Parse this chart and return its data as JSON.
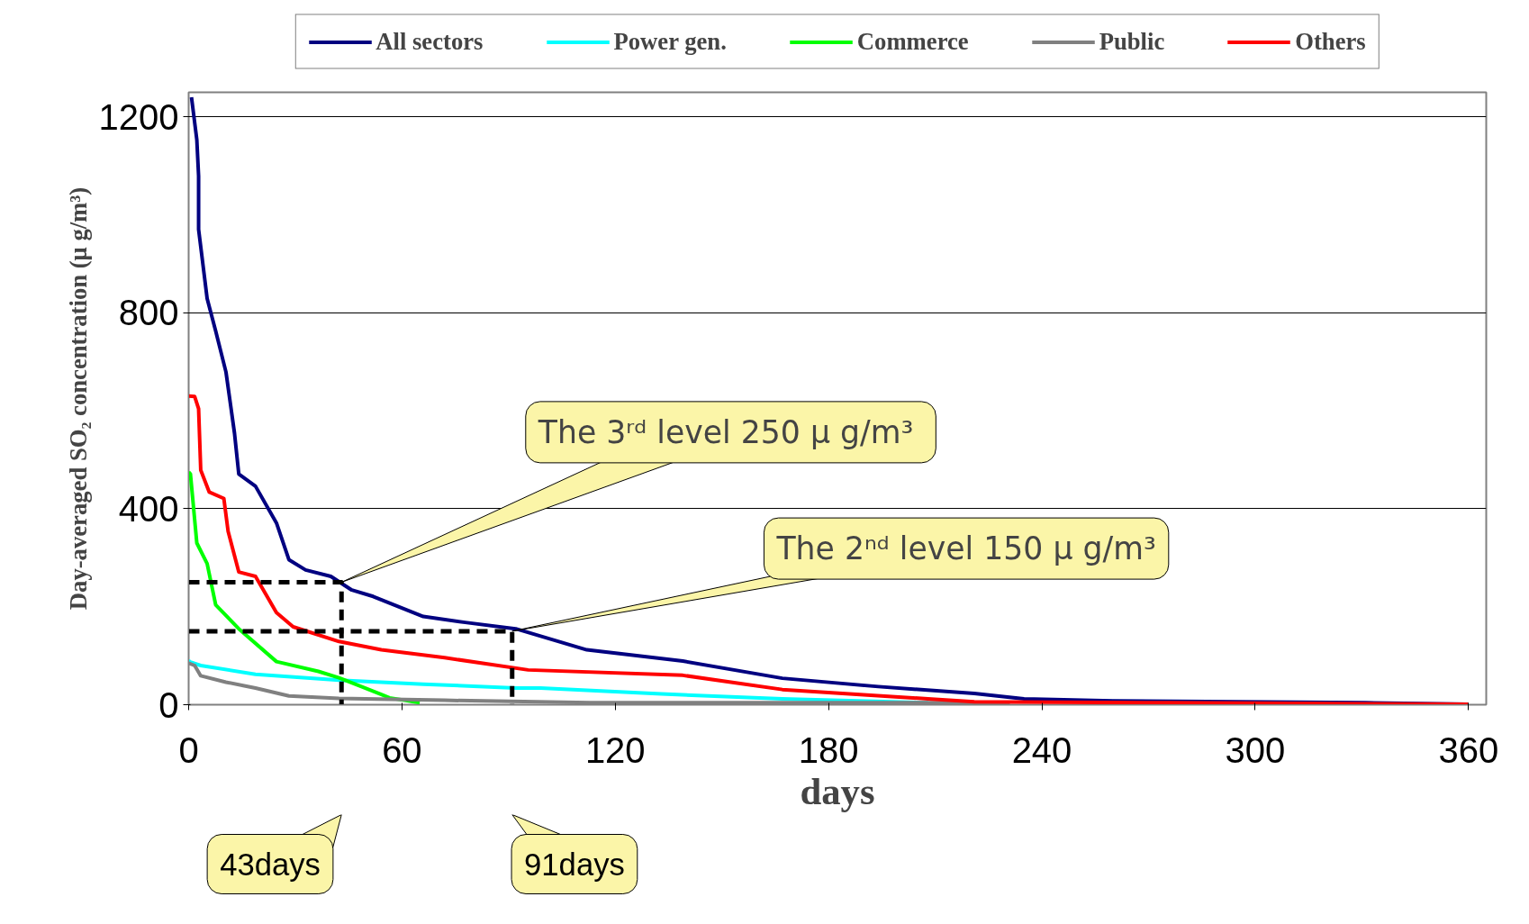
{
  "chart_data": {
    "type": "line",
    "xlabel": "days",
    "ylabel": "Day-averaged SO₂ concentration (μ g/m³)",
    "xlim": [
      0,
      365
    ],
    "ylim": [
      0,
      1250
    ],
    "xticks": [
      0,
      60,
      120,
      180,
      240,
      300,
      360
    ],
    "yticks": [
      0,
      400,
      800,
      1200
    ],
    "grid": "y",
    "legend": "top",
    "line_style": "solid",
    "marker": "none",
    "series": [
      {
        "name": "All sectors",
        "color": "#000080",
        "x": [
          0.8,
          2.3,
          2.8,
          2.8,
          5.2,
          7.6,
          10.5,
          12.9,
          14.1,
          18.8,
          24.7,
          28.2,
          32.9,
          40,
          45.9,
          51.9,
          66,
          77.8,
          92,
          112,
          139,
          167,
          194,
          221,
          235,
          260,
          331,
          360
        ],
        "values": [
          1240,
          1153,
          1079,
          970,
          829,
          763,
          679,
          554,
          471,
          446,
          371,
          296,
          275,
          262,
          234,
          221,
          180,
          168,
          155,
          112,
          89,
          54,
          37,
          23,
          12,
          8,
          4,
          1
        ]
      },
      {
        "name": "Power gen.",
        "color": "#00ffff",
        "x": [
          0,
          0.5,
          3.4,
          18.8,
          42.3,
          66,
          92,
          99,
          133,
          167,
          208
        ],
        "values": [
          90,
          87,
          80,
          62,
          50,
          42,
          34,
          34,
          22,
          12,
          4
        ]
      },
      {
        "name": "Commerce",
        "color": "#00ff00",
        "x": [
          0,
          0.5,
          2.3,
          5.2,
          7.6,
          14.1,
          24.7,
          36.5,
          42.3,
          54.2,
          56.5,
          65
        ],
        "values": [
          475,
          471,
          330,
          288,
          204,
          155,
          88,
          68,
          55,
          21,
          14,
          4
        ]
      },
      {
        "name": "Public",
        "color": "#808080",
        "x": [
          0,
          1.7,
          3.4,
          10.5,
          18.8,
          28.2,
          42.3,
          72,
          113,
          231
        ],
        "values": [
          85,
          80,
          59,
          46,
          34,
          18,
          13,
          9,
          4,
          4
        ]
      },
      {
        "name": "Others",
        "color": "#ff0000",
        "x": [
          0,
          1.7,
          2.8,
          3.4,
          5.8,
          9.9,
          11.1,
          14.1,
          18.8,
          24.7,
          29.4,
          42.3,
          54.2,
          72,
          95.5,
          139,
          167,
          208,
          221,
          276,
          360
        ],
        "values": [
          630,
          629,
          604,
          479,
          434,
          421,
          354,
          271,
          262,
          188,
          159,
          129,
          112,
          96,
          71,
          60,
          31,
          12,
          6,
          4,
          1
        ]
      },
      {
        "color": "#000000",
        "line_style": "dashed",
        "x": [
          0,
          43,
          43
        ],
        "values": [
          250,
          250,
          0
        ]
      },
      {
        "color": "#000000",
        "line_style": "dashed",
        "x": [
          0,
          91,
          91
        ],
        "values": [
          150,
          150,
          0
        ]
      }
    ],
    "annotations": [
      {
        "text": "The 3ʳᵈ level  250 μ g/m³",
        "x": 43,
        "y": 250
      },
      {
        "text": "The 2ⁿᵈ level 150 μ g/m³",
        "x": 91,
        "y": 150
      },
      "43days",
      "91days"
    ]
  }
}
